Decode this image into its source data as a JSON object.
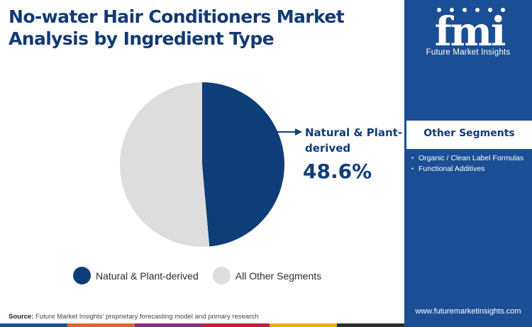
{
  "title": "No-water Hair Conditioners Market Analysis by Ingredient Type",
  "callout": {
    "label": "Natural & Plant-derived",
    "value": "48.6%"
  },
  "legend": [
    "Natural & Plant-derived",
    "All Other Segments"
  ],
  "source": {
    "prefix": "Source:",
    "text": "Future Market Insights' proprietary forecasting model and primary research"
  },
  "sidebar": {
    "logo_text": "fmi",
    "logo_subtitle": "Future Market Insights",
    "other_segments_title": "Other Segments",
    "other_segments": [
      "Organic / Clean Label Formulas",
      "Functional Additives"
    ],
    "website": "www.futuremarketinsights.com"
  },
  "colors": {
    "primary": "#0f3d78",
    "secondary": "#dddddd",
    "sidebar": "#1b4f95",
    "bottom_bar": [
      "#1b4f95",
      "#e0662a",
      "#8a2a8a",
      "#c0203a",
      "#f2a81d",
      "#2b2b2b"
    ]
  },
  "chart_data": {
    "type": "pie",
    "title": "No-water Hair Conditioners Market Analysis by Ingredient Type",
    "slices": [
      {
        "label": "Natural & Plant-derived",
        "value": 48.6,
        "color": "#0f3d78"
      },
      {
        "label": "All Other Segments",
        "value": 51.4,
        "color": "#dddddd"
      }
    ],
    "legend_position": "bottom"
  }
}
